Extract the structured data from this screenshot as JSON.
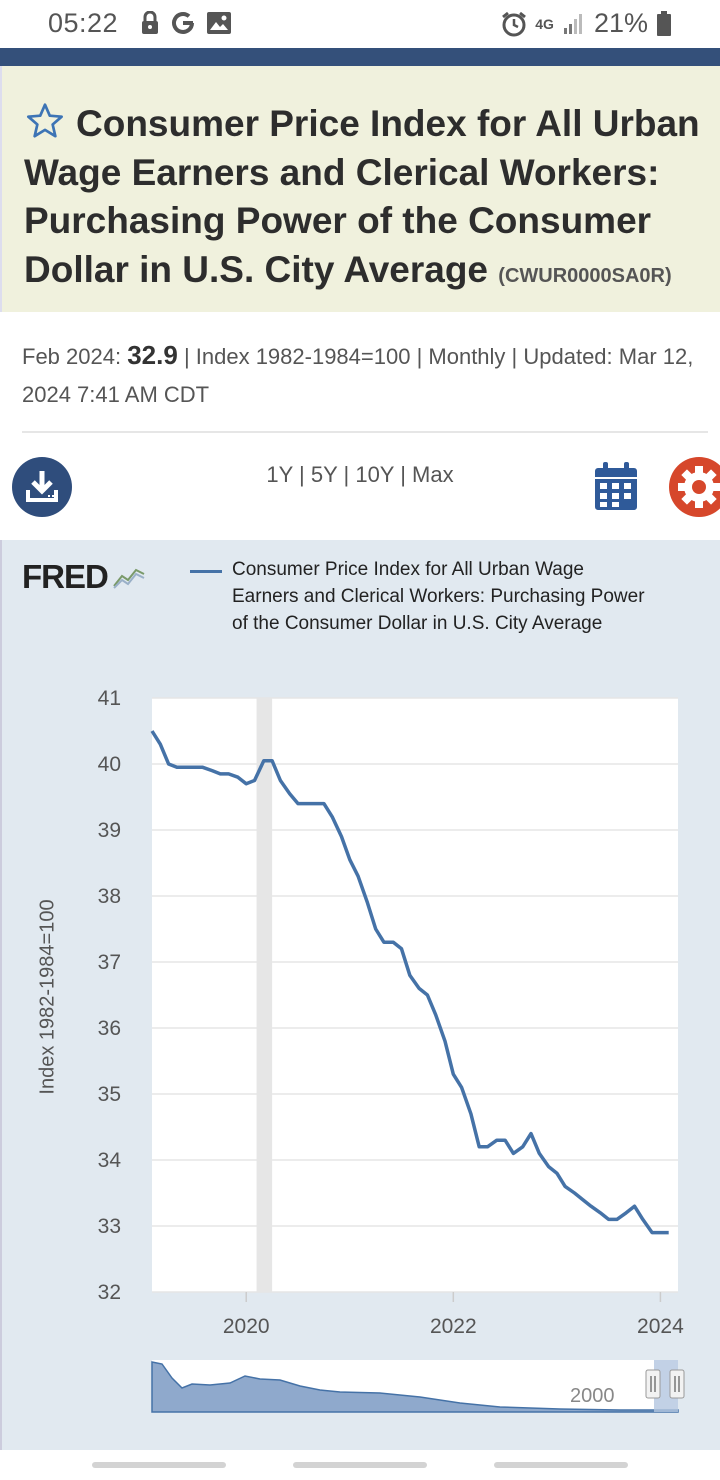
{
  "status_bar": {
    "time": "05:22",
    "battery": "21%",
    "network": "4G"
  },
  "header": {
    "title": "Consumer Price Index for All Urban Wage Earners and Clerical Workers: Purchasing Power of the Consumer Dollar in U.S. City Average",
    "series_code": "(CWUR0000SA0R)"
  },
  "meta": {
    "period": "Feb 2024:",
    "value": "32.9",
    "details": "| Index 1982-1984=100 | Monthly | Updated: Mar 12, 2024 7:41 AM CDT"
  },
  "toolbar": {
    "ranges": [
      "1Y",
      "5Y",
      "10Y",
      "Max"
    ],
    "icons": [
      "download-icon",
      "calendar-icon",
      "gear-icon"
    ]
  },
  "chart": {
    "logo": "FRED",
    "legend": "Consumer Price Index for All Urban Wage Earners and Clerical Workers: Purchasing Power of the Consumer Dollar in U.S. City Average",
    "navigator_label": "2000",
    "colors": {
      "line": "#4572a7",
      "panel": "#e1e9f0",
      "recession": "#e6e6e6"
    }
  },
  "chart_data": {
    "type": "line",
    "ylabel": "Index 1982-1984=100",
    "ylim": [
      32,
      41
    ],
    "yticks": [
      "32",
      "33",
      "34",
      "35",
      "36",
      "37",
      "38",
      "39",
      "40",
      "41"
    ],
    "xticks": [
      {
        "label": "2020",
        "x": 2020.0
      },
      {
        "label": "2022",
        "x": 2022.0
      },
      {
        "label": "2024",
        "x": 2024.0
      }
    ],
    "xlim": [
      2019.09,
      2024.17
    ],
    "recession": [
      2020.1,
      2020.25
    ],
    "series": [
      {
        "x": [
          2019.09,
          2019.17,
          2019.25,
          2019.33,
          2019.42,
          2019.5,
          2019.58,
          2019.67,
          2019.75,
          2019.83,
          2019.92,
          2020.0,
          2020.08,
          2020.17,
          2020.25,
          2020.33,
          2020.42,
          2020.5,
          2020.58,
          2020.67,
          2020.75,
          2020.83,
          2020.92,
          2021.0,
          2021.08,
          2021.17,
          2021.25,
          2021.33,
          2021.42,
          2021.5,
          2021.58,
          2021.67,
          2021.75,
          2021.83,
          2021.92,
          2022.0,
          2022.08,
          2022.17,
          2022.25,
          2022.33,
          2022.42,
          2022.5,
          2022.58,
          2022.67,
          2022.75,
          2022.83,
          2022.92,
          2023.0,
          2023.08,
          2023.17,
          2023.25,
          2023.33,
          2023.42,
          2023.5,
          2023.58,
          2023.67,
          2023.75,
          2023.83,
          2023.92,
          2024.0,
          2024.08
        ],
        "y": [
          40.5,
          40.3,
          40.0,
          39.95,
          39.95,
          39.95,
          39.95,
          39.9,
          39.85,
          39.85,
          39.8,
          39.7,
          39.75,
          40.05,
          40.05,
          39.75,
          39.55,
          39.4,
          39.4,
          39.4,
          39.4,
          39.2,
          38.9,
          38.55,
          38.3,
          37.9,
          37.5,
          37.3,
          37.3,
          37.2,
          36.8,
          36.6,
          36.5,
          36.2,
          35.8,
          35.3,
          35.1,
          34.7,
          34.2,
          34.2,
          34.3,
          34.3,
          34.1,
          34.2,
          34.4,
          34.1,
          33.9,
          33.8,
          33.6,
          33.5,
          33.4,
          33.3,
          33.2,
          33.1,
          33.1,
          33.2,
          33.3,
          33.1,
          32.9,
          32.9,
          32.9
        ]
      }
    ]
  }
}
